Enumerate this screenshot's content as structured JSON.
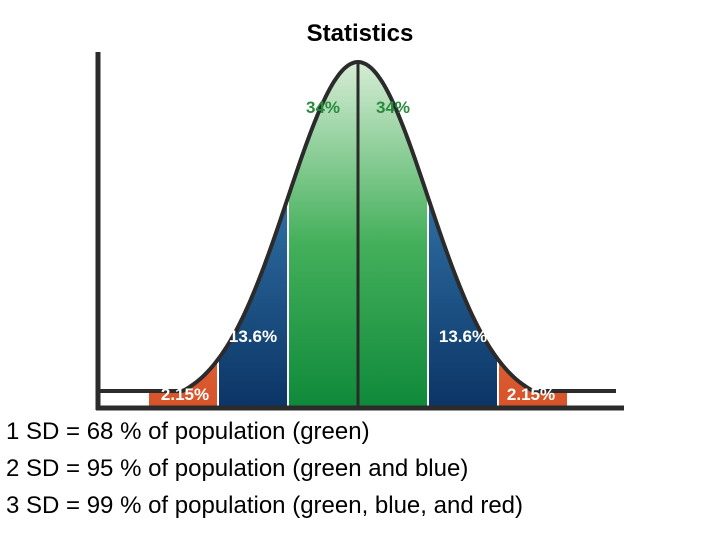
{
  "slide": {
    "title": "Statistics"
  },
  "chart_data": {
    "type": "area",
    "distribution": "normal",
    "title": "",
    "xlabel": "",
    "ylabel": "",
    "regions": [
      {
        "from_sd": -3,
        "to_sd": -2,
        "percent": 2.15,
        "label": "2.15%",
        "color": "#e0703f"
      },
      {
        "from_sd": -2,
        "to_sd": -1,
        "percent": 13.6,
        "label": "13.6%",
        "color": "#14508f"
      },
      {
        "from_sd": -1,
        "to_sd": 0,
        "percent": 34,
        "label": "34%",
        "color": "#1f9a44"
      },
      {
        "from_sd": 0,
        "to_sd": 1,
        "percent": 34,
        "label": "34%",
        "color": "#1f9a44"
      },
      {
        "from_sd": 1,
        "to_sd": 2,
        "percent": 13.6,
        "label": "13.6%",
        "color": "#14508f"
      },
      {
        "from_sd": 2,
        "to_sd": 3,
        "percent": 2.15,
        "label": "2.15%",
        "color": "#e0703f"
      }
    ],
    "grid": false,
    "legend": "none"
  },
  "captions": [
    "1 SD = 68 % of population (green)",
    "2 SD = 95 % of population (green and blue)",
    "3 SD = 99 % of population (green, blue, and red)"
  ]
}
